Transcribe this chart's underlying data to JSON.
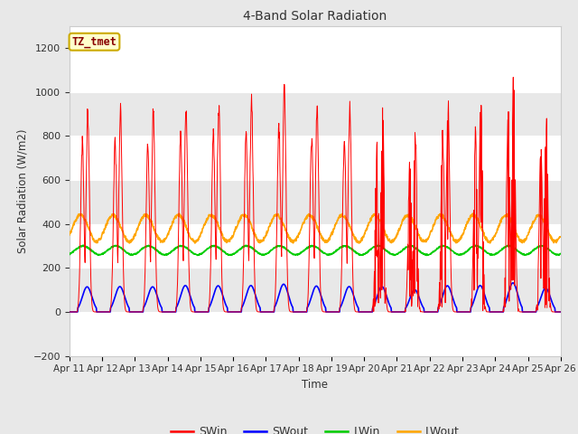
{
  "title": "4-Band Solar Radiation",
  "ylabel": "Solar Radiation (W/m2)",
  "xlabel": "Time",
  "ylim": [
    -200,
    1300
  ],
  "yticks": [
    -200,
    0,
    200,
    400,
    600,
    800,
    1000,
    1200
  ],
  "xtick_labels": [
    "Apr 11",
    "Apr 12",
    "Apr 13",
    "Apr 14",
    "Apr 15",
    "Apr 16",
    "Apr 17",
    "Apr 18",
    "Apr 19",
    "Apr 20",
    "Apr 21",
    "Apr 22",
    "Apr 23",
    "Apr 24",
    "Apr 25",
    "Apr 26"
  ],
  "colors": {
    "SWin": "#ff0000",
    "SWout": "#0000ff",
    "LWin": "#00cc00",
    "LWout": "#ffa500"
  },
  "legend_label": "TZ_tmet",
  "legend_box_color": "#ffffcc",
  "legend_box_edge": "#ccaa00",
  "fig_bg_color": "#e8e8e8",
  "plot_bg_color": "#ffffff",
  "band_color": "#e8e8e8",
  "n_days": 15,
  "hours_per_day": 24,
  "dt_hours": 0.25,
  "SWin_day_peaks": [
    950,
    960,
    950,
    1000,
    990,
    1000,
    1050,
    980,
    960,
    960,
    840,
    990,
    1000,
    1100,
    900
  ],
  "LWin_base": 280,
  "LWout_base": 380
}
